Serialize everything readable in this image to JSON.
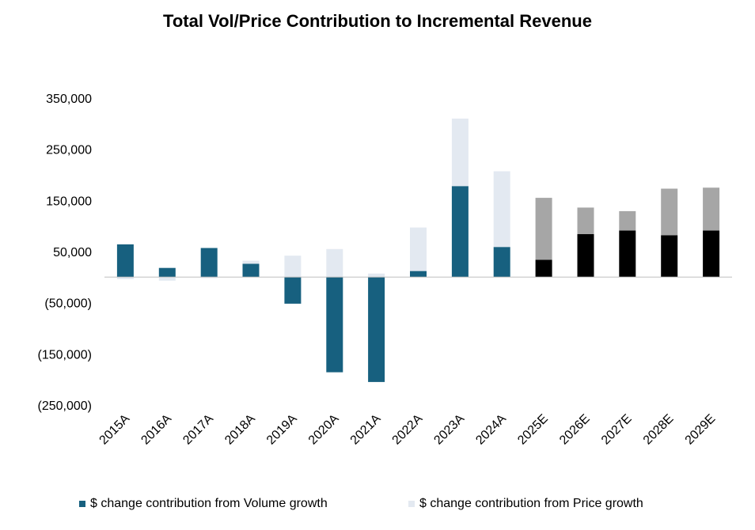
{
  "chart_data": {
    "type": "bar",
    "stacked": true,
    "title": "Total Vol/Price Contribution to Incremental Revenue",
    "xlabel": "",
    "ylabel": "",
    "categories": [
      "2015A",
      "2016A",
      "2017A",
      "2018A",
      "2019A",
      "2020A",
      "2021A",
      "2022A",
      "2023A",
      "2024A",
      "2025E",
      "2026E",
      "2027E",
      "2028E",
      "2029E"
    ],
    "series": [
      {
        "name": "$ change contribution from Volume growth",
        "color": "#17607F",
        "estimate_color": "#000000",
        "values": [
          64000,
          18000,
          57000,
          26000,
          -52000,
          -186000,
          -205000,
          12000,
          178000,
          59000,
          34000,
          84000,
          91000,
          82000,
          91000
        ]
      },
      {
        "name": "$ change contribution from Price growth",
        "color": "#E3E9F1",
        "estimate_color": "#A6A6A6",
        "values": [
          -4000,
          -7000,
          -2000,
          6000,
          42000,
          55000,
          7000,
          85000,
          132000,
          148000,
          121000,
          52000,
          38000,
          91000,
          84000
        ]
      }
    ],
    "estimate_categories": [
      "2025E",
      "2026E",
      "2027E",
      "2028E",
      "2029E"
    ],
    "ylim": [
      -250000,
      350000
    ],
    "yticks": [
      -250000,
      -150000,
      -50000,
      50000,
      150000,
      250000,
      350000
    ],
    "ytick_labels": [
      "(250,000)",
      "(150,000)",
      "(50,000)",
      "50,000",
      "150,000",
      "250,000",
      "350,000"
    ],
    "grid": false,
    "legend_position": "bottom"
  }
}
